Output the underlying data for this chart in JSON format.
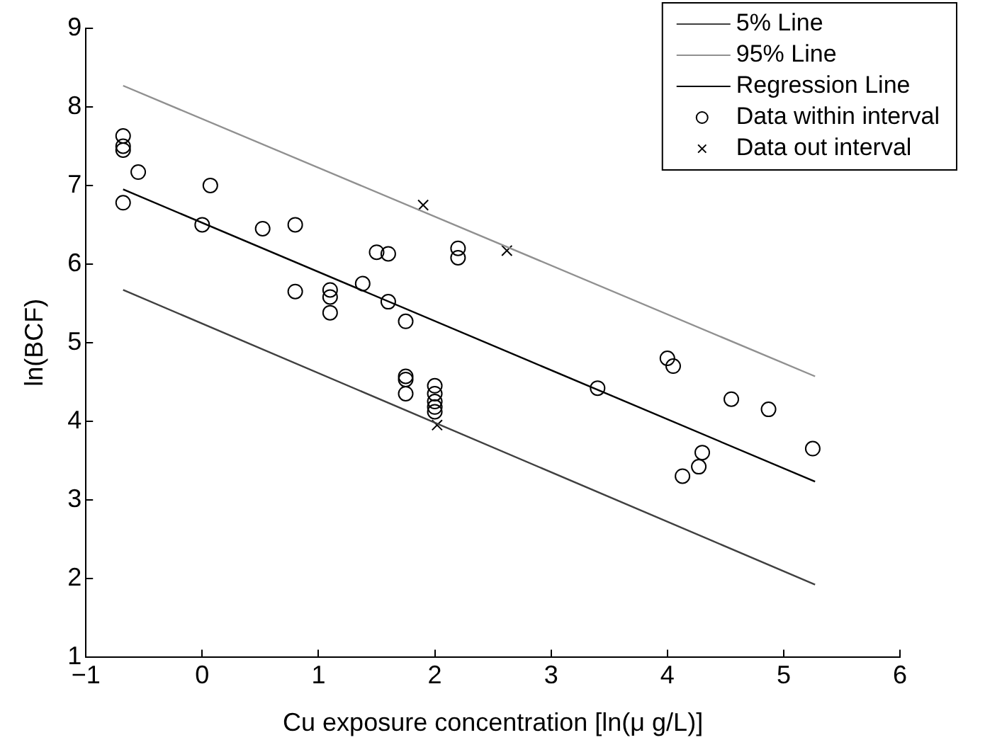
{
  "chart_data": {
    "type": "scatter",
    "xlabel": "Cu exposure concentration [ln(μ g/L)]",
    "ylabel": "ln(BCF)",
    "xlim": [
      -1,
      6
    ],
    "ylim": [
      1,
      9
    ],
    "xticks": [
      -1,
      0,
      1,
      2,
      3,
      4,
      5,
      6
    ],
    "yticks": [
      1,
      2,
      3,
      4,
      5,
      6,
      7,
      8,
      9
    ],
    "grid": false,
    "legend": "top right",
    "series": [
      {
        "name": "5% Line",
        "type": "line",
        "color": "#404040",
        "marker": "none",
        "x": [
          -0.68,
          5.27
        ],
        "values": [
          5.67,
          1.92
        ]
      },
      {
        "name": "95% Line",
        "type": "line",
        "color": "#909090",
        "marker": "none",
        "x": [
          -0.68,
          5.27
        ],
        "values": [
          8.27,
          4.57
        ]
      },
      {
        "name": "Regression Line",
        "type": "line",
        "color": "#000000",
        "marker": "none",
        "x": [
          -0.68,
          5.27
        ],
        "values": [
          6.95,
          3.23
        ]
      },
      {
        "name": "Data within interval",
        "type": "scatter",
        "color": "#000000",
        "marker": "circle",
        "x": [
          -0.68,
          -0.68,
          -0.68,
          -0.68,
          -0.55,
          0.07,
          0,
          0.52,
          0.8,
          0.8,
          1.1,
          1.1,
          1.1,
          1.38,
          1.5,
          1.6,
          1.6,
          1.75,
          1.75,
          1.75,
          1.75,
          2,
          2,
          2,
          2,
          2,
          2.2,
          2.2,
          3.4,
          4,
          4.05,
          4.55,
          4.87,
          5.25,
          4.3,
          4.27,
          4.13
        ],
        "values": [
          7.63,
          7.5,
          7.45,
          6.78,
          7.17,
          7,
          6.5,
          6.45,
          6.5,
          5.65,
          5.67,
          5.58,
          5.38,
          5.75,
          6.15,
          6.13,
          5.52,
          5.27,
          4.57,
          4.53,
          4.35,
          4.45,
          4.35,
          4.25,
          4.18,
          4.12,
          6.2,
          6.08,
          4.42,
          4.8,
          4.7,
          4.28,
          4.15,
          3.65,
          3.6,
          3.42,
          3.3
        ]
      },
      {
        "name": "Data out interval",
        "type": "scatter",
        "color": "#000000",
        "marker": "cross",
        "x": [
          1.9,
          2.62,
          2.02
        ],
        "values": [
          6.75,
          6.17,
          3.95
        ]
      }
    ]
  }
}
